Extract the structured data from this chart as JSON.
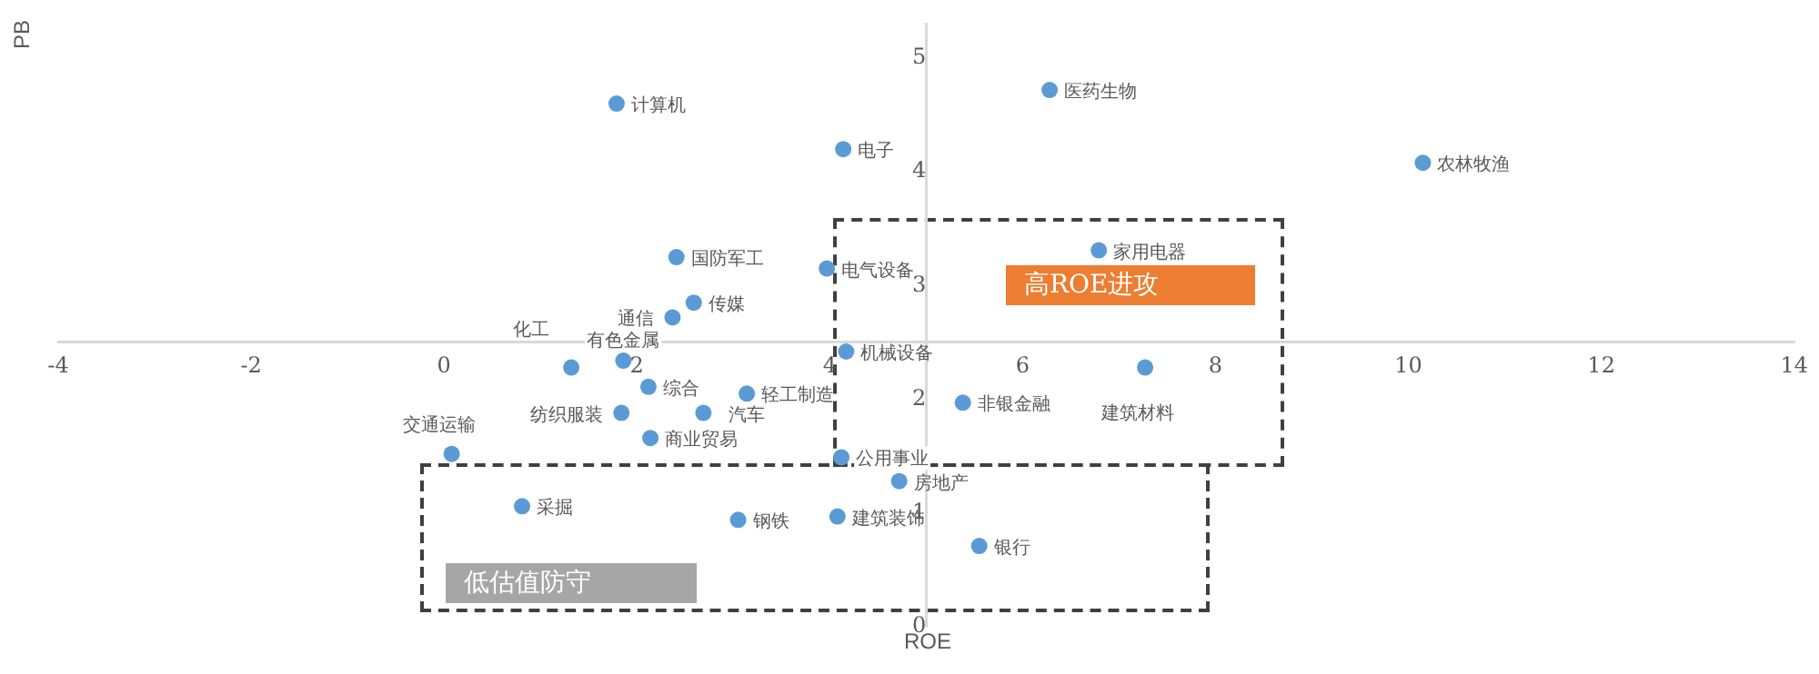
{
  "chart_data": {
    "type": "scatter",
    "xlabel": "ROE",
    "ylabel": "PB",
    "xlim": [
      -4,
      14
    ],
    "xticks": [
      -4,
      -2,
      0,
      2,
      4,
      6,
      8,
      10,
      12,
      14
    ],
    "ylim": [
      0,
      5.3
    ],
    "yticks": [
      0,
      1,
      2,
      3,
      4,
      5
    ],
    "grid": false,
    "legend": false,
    "marker": "circle",
    "annotations": [
      "高ROE进攻",
      "低估值防守"
    ],
    "series": [
      {
        "name": "计算机",
        "color": "#5b9bd5",
        "x": [
          1.79
        ],
        "values": [
          4.6
        ]
      },
      {
        "name": "医药生物",
        "color": "#5b9bd5",
        "x": [
          6.28
        ],
        "values": [
          4.72
        ]
      },
      {
        "name": "电子",
        "color": "#5b9bd5",
        "x": [
          4.14
        ],
        "values": [
          4.2
        ]
      },
      {
        "name": "农林牧渔",
        "color": "#5b9bd5",
        "x": [
          10.15
        ],
        "values": [
          4.08
        ]
      },
      {
        "name": "国防军工",
        "color": "#5b9bd5",
        "x": [
          2.41
        ],
        "values": [
          3.25
        ]
      },
      {
        "name": "电气设备",
        "color": "#5b9bd5",
        "x": [
          3.97
        ],
        "values": [
          3.15
        ]
      },
      {
        "name": "家用电器",
        "color": "#5b9bd5",
        "x": [
          6.79
        ],
        "values": [
          3.31
        ]
      },
      {
        "name": "传媒",
        "color": "#5b9bd5",
        "x": [
          2.59
        ],
        "values": [
          2.85
        ]
      },
      {
        "name": "通信",
        "color": "#5b9bd5",
        "x": [
          2.37
        ],
        "values": [
          2.72
        ]
      },
      {
        "name": "化工",
        "color": "#5b9bd5",
        "x": [
          1.32
        ],
        "values": [
          2.28
        ]
      },
      {
        "name": "有色金属",
        "color": "#5b9bd5",
        "x": [
          1.86
        ],
        "values": [
          2.34
        ]
      },
      {
        "name": "机械设备",
        "color": "#5b9bd5",
        "x": [
          4.17
        ],
        "values": [
          2.42
        ]
      },
      {
        "name": "建筑材料",
        "color": "#5b9bd5",
        "x": [
          7.27
        ],
        "values": [
          2.28
        ]
      },
      {
        "name": "综合",
        "color": "#5b9bd5",
        "x": [
          2.12
        ],
        "values": [
          2.11
        ]
      },
      {
        "name": "轻工制造",
        "color": "#5b9bd5",
        "x": [
          3.14
        ],
        "values": [
          2.05
        ]
      },
      {
        "name": "非银金融",
        "color": "#5b9bd5",
        "x": [
          5.38
        ],
        "values": [
          1.97
        ]
      },
      {
        "name": "纺织服装",
        "color": "#5b9bd5",
        "x": [
          1.84
        ],
        "values": [
          1.88
        ]
      },
      {
        "name": "汽车",
        "color": "#5b9bd5",
        "x": [
          2.69
        ],
        "values": [
          1.88
        ]
      },
      {
        "name": "商业贸易",
        "color": "#5b9bd5",
        "x": [
          2.14
        ],
        "values": [
          1.66
        ]
      },
      {
        "name": "交通运输",
        "color": "#5b9bd5",
        "x": [
          0.08
        ],
        "values": [
          1.52
        ]
      },
      {
        "name": "公用事业",
        "color": "#5b9bd5",
        "x": [
          4.12
        ],
        "values": [
          1.49
        ]
      },
      {
        "name": "房地产",
        "color": "#5b9bd5",
        "x": [
          4.72
        ],
        "values": [
          1.28
        ]
      },
      {
        "name": "采掘",
        "color": "#5b9bd5",
        "x": [
          0.81
        ],
        "values": [
          1.06
        ]
      },
      {
        "name": "钢铁",
        "color": "#5b9bd5",
        "x": [
          3.05
        ],
        "values": [
          0.94
        ]
      },
      {
        "name": "建筑装饰",
        "color": "#5b9bd5",
        "x": [
          4.08
        ],
        "values": [
          0.97
        ]
      },
      {
        "name": "银行",
        "color": "#5b9bd5",
        "x": [
          5.55
        ],
        "values": [
          0.71
        ]
      }
    ]
  }
}
